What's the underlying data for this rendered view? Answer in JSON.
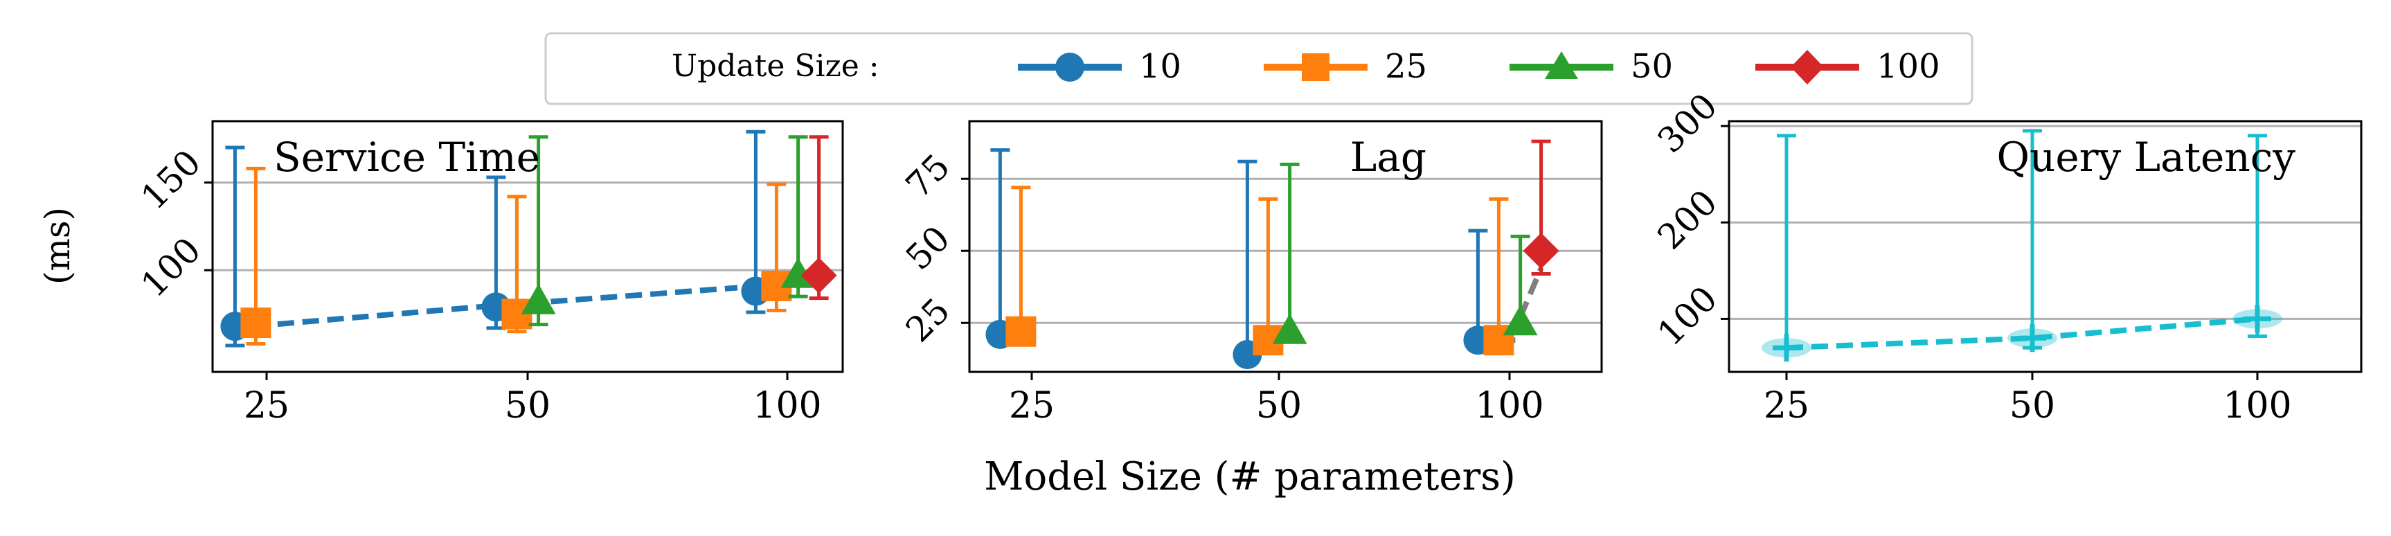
{
  "legend": {
    "title": "Update Size :",
    "entries": [
      {
        "label": "10",
        "color": "#1f77b4",
        "marker": "circle"
      },
      {
        "label": "25",
        "color": "#ff7f0e",
        "marker": "square"
      },
      {
        "label": "50",
        "color": "#2ca02c",
        "marker": "triangle"
      },
      {
        "label": "100",
        "color": "#d62728",
        "marker": "diamond"
      }
    ]
  },
  "ylabel": "(ms)",
  "xlabel": "Model Size (# parameters)",
  "chart_data": [
    {
      "type": "line",
      "title": "Service Time",
      "categories": [
        "25",
        "50",
        "100"
      ],
      "ylim": [
        42,
        185
      ],
      "yticks": [
        100,
        150
      ],
      "grid": "y",
      "series": [
        {
          "name": "10",
          "color": "#1f77b4",
          "marker": "circle",
          "offset": -0.38,
          "values": [
            68,
            79,
            88
          ],
          "lower": [
            57,
            67,
            76
          ],
          "upper": [
            170,
            153,
            179
          ]
        },
        {
          "name": "25",
          "color": "#ff7f0e",
          "marker": "square",
          "offset": -0.13,
          "values": [
            70,
            75,
            91
          ],
          "lower": [
            58,
            65,
            77
          ],
          "upper": [
            158,
            142,
            149
          ]
        },
        {
          "name": "50",
          "color": "#2ca02c",
          "marker": "triangle",
          "offset": 0.13,
          "values": [
            null,
            82,
            97
          ],
          "lower": [
            null,
            69,
            85
          ],
          "upper": [
            null,
            176,
            176
          ]
        },
        {
          "name": "100",
          "color": "#d62728",
          "marker": "diamond",
          "offset": 0.38,
          "values": [
            null,
            null,
            97
          ],
          "lower": [
            null,
            null,
            84
          ],
          "upper": [
            null,
            null,
            176
          ]
        }
      ],
      "trend": {
        "color": "#1f77b4",
        "values": [
          68,
          79,
          90
        ]
      }
    },
    {
      "type": "line",
      "title": "Lag",
      "categories": [
        "25",
        "50",
        "100"
      ],
      "ylim": [
        8,
        95
      ],
      "yticks": [
        25,
        50,
        75
      ],
      "grid": "y",
      "series": [
        {
          "name": "10",
          "color": "#1f77b4",
          "marker": "circle",
          "offset": -0.38,
          "values": [
            21,
            14,
            19
          ],
          "lower": [
            null,
            null,
            null
          ],
          "upper": [
            85,
            81,
            57
          ]
        },
        {
          "name": "25",
          "color": "#ff7f0e",
          "marker": "square",
          "offset": -0.13,
          "values": [
            22,
            19,
            19
          ],
          "lower": [
            null,
            null,
            null
          ],
          "upper": [
            72,
            68,
            68
          ]
        },
        {
          "name": "50",
          "color": "#2ca02c",
          "marker": "triangle",
          "offset": 0.13,
          "values": [
            null,
            22,
            25
          ],
          "lower": [
            null,
            null,
            null
          ],
          "upper": [
            null,
            80,
            55
          ]
        },
        {
          "name": "100",
          "color": "#d62728",
          "marker": "diamond",
          "offset": 0.38,
          "values": [
            null,
            null,
            50
          ],
          "lower": [
            null,
            null,
            42
          ],
          "upper": [
            null,
            null,
            88
          ]
        }
      ],
      "trend": {
        "color": "#7f7f7f",
        "segments": [
          [
            [
              -0.13,
              17
            ],
            [
              0.13,
              21
            ]
          ],
          [
            [
              -0.13,
              19
            ],
            [
              0.13,
              19
            ]
          ],
          [
            [
              0.13,
              27
            ],
            [
              0.38,
              44
            ]
          ]
        ]
      }
    },
    {
      "type": "line",
      "title": "Query Latency",
      "categories": [
        "25",
        "50",
        "100"
      ],
      "ylim": [
        45,
        305
      ],
      "yticks": [
        100,
        200,
        300
      ],
      "grid": "y",
      "series": [
        {
          "name": "",
          "color": "#17becf",
          "marker": "plus",
          "offset": 0,
          "values": [
            70,
            80,
            100
          ],
          "lower": [
            null,
            70,
            82
          ],
          "upper": [
            290,
            295,
            290
          ]
        }
      ],
      "trend": {
        "color": "#17becf",
        "values": [
          70,
          80,
          100
        ]
      }
    }
  ]
}
